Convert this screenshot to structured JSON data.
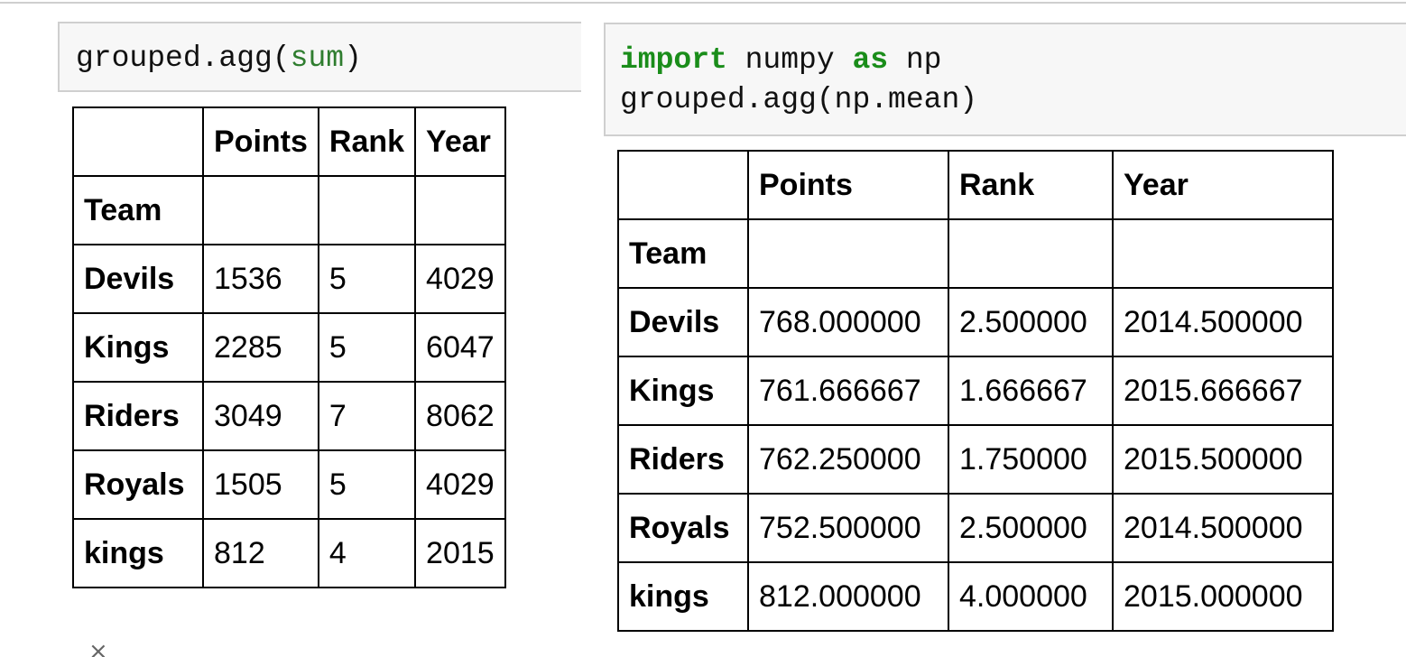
{
  "left_cell": {
    "code_before": "grouped.agg(",
    "code_builtin": "sum",
    "code_after": ")"
  },
  "right_cell": {
    "line1_kw1": "import",
    "line1_mid": " numpy ",
    "line1_kw2": "as",
    "line1_end": " np",
    "line2": "grouped.agg(np.mean)"
  },
  "left_table": {
    "columns": [
      "",
      "Points",
      "Rank",
      "Year"
    ],
    "index_name": "Team",
    "rows": [
      {
        "team": "Devils",
        "points": "1536",
        "rank": "5",
        "year": "4029"
      },
      {
        "team": "Kings",
        "points": "2285",
        "rank": "5",
        "year": "6047"
      },
      {
        "team": "Riders",
        "points": "3049",
        "rank": "7",
        "year": "8062"
      },
      {
        "team": "Royals",
        "points": "1505",
        "rank": "5",
        "year": "4029"
      },
      {
        "team": "kings",
        "points": "812",
        "rank": "4",
        "year": "2015"
      }
    ]
  },
  "right_table": {
    "columns": [
      "",
      "Points",
      "Rank",
      "Year"
    ],
    "index_name": "Team",
    "rows": [
      {
        "team": "Devils",
        "points": "768.000000",
        "rank": "2.500000",
        "year": "2014.500000"
      },
      {
        "team": "Kings",
        "points": "761.666667",
        "rank": "1.666667",
        "year": "2015.666667"
      },
      {
        "team": "Riders",
        "points": "762.250000",
        "rank": "1.750000",
        "year": "2015.500000"
      },
      {
        "team": "Royals",
        "points": "752.500000",
        "rank": "2.500000",
        "year": "2014.500000"
      },
      {
        "team": "kings",
        "points": "812.000000",
        "rank": "4.000000",
        "year": "2015.000000"
      }
    ]
  },
  "icons": {
    "close": "close-icon"
  }
}
